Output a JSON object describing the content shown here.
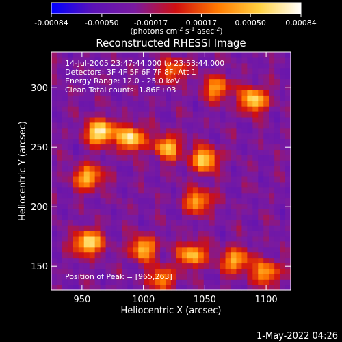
{
  "colorbar": {
    "ticks": [
      "-0.00084",
      "-0.00050",
      "-0.00017",
      "0.00017",
      "0.00050",
      "0.00084"
    ],
    "tick_values": [
      -0.00084,
      -0.0005,
      -0.00017,
      0.00017,
      0.0005,
      0.00084
    ],
    "range": [
      -0.00084,
      0.00084
    ],
    "unit_parts": {
      "open": "(photons cm",
      "e1": "-2",
      "mid1": " s",
      "e2": "-1",
      "mid2": " asec",
      "e3": "-2",
      "close": ")"
    },
    "colormap": [
      "#0000ff",
      "#5b12b8",
      "#7a1aa0",
      "#d01010",
      "#ff7a00",
      "#ffd040",
      "#ffffff"
    ]
  },
  "chart_data": {
    "type": "heatmap",
    "title": "Reconstructed RHESSI Image",
    "xlabel": "Heliocentric X (arcsec)",
    "ylabel": "Heliocentric Y (arcsec)",
    "xlim": [
      925,
      1120
    ],
    "ylim": [
      130,
      330
    ],
    "x_ticks": [
      950,
      1000,
      1050,
      1100
    ],
    "y_ticks": [
      150,
      200,
      250,
      300
    ],
    "grid": false,
    "annotations": {
      "time": "14-Jul-2005 23:47:44.000 to 23:53:44.000",
      "detectors": "Detectors: 3F 4F 5F 6F 7F 8F, Att 1",
      "energy": "Energy Range: 12.0 - 25.0 keV",
      "clean": "Clean     Total counts: 1.86E+03",
      "peak": "Position of Peak = [965,263]"
    },
    "sources": [
      {
        "x": 965,
        "y": 263,
        "value": 0.00084
      },
      {
        "x": 990,
        "y": 258,
        "value": 0.0007
      },
      {
        "x": 955,
        "y": 225,
        "value": 0.00055
      },
      {
        "x": 1020,
        "y": 250,
        "value": 0.00052
      },
      {
        "x": 1050,
        "y": 240,
        "value": 0.0006
      },
      {
        "x": 1045,
        "y": 205,
        "value": 0.00045
      },
      {
        "x": 1090,
        "y": 290,
        "value": 0.00065
      },
      {
        "x": 1060,
        "y": 300,
        "value": 0.0004
      },
      {
        "x": 1025,
        "y": 315,
        "value": 0.0003
      },
      {
        "x": 955,
        "y": 170,
        "value": 0.00075
      },
      {
        "x": 1000,
        "y": 165,
        "value": 0.0005
      },
      {
        "x": 1040,
        "y": 160,
        "value": 0.00055
      },
      {
        "x": 1075,
        "y": 155,
        "value": 0.0005
      },
      {
        "x": 1100,
        "y": 145,
        "value": 0.00045
      },
      {
        "x": 1015,
        "y": 140,
        "value": 0.00035
      }
    ]
  },
  "timestamp": "1-May-2022 04:26"
}
